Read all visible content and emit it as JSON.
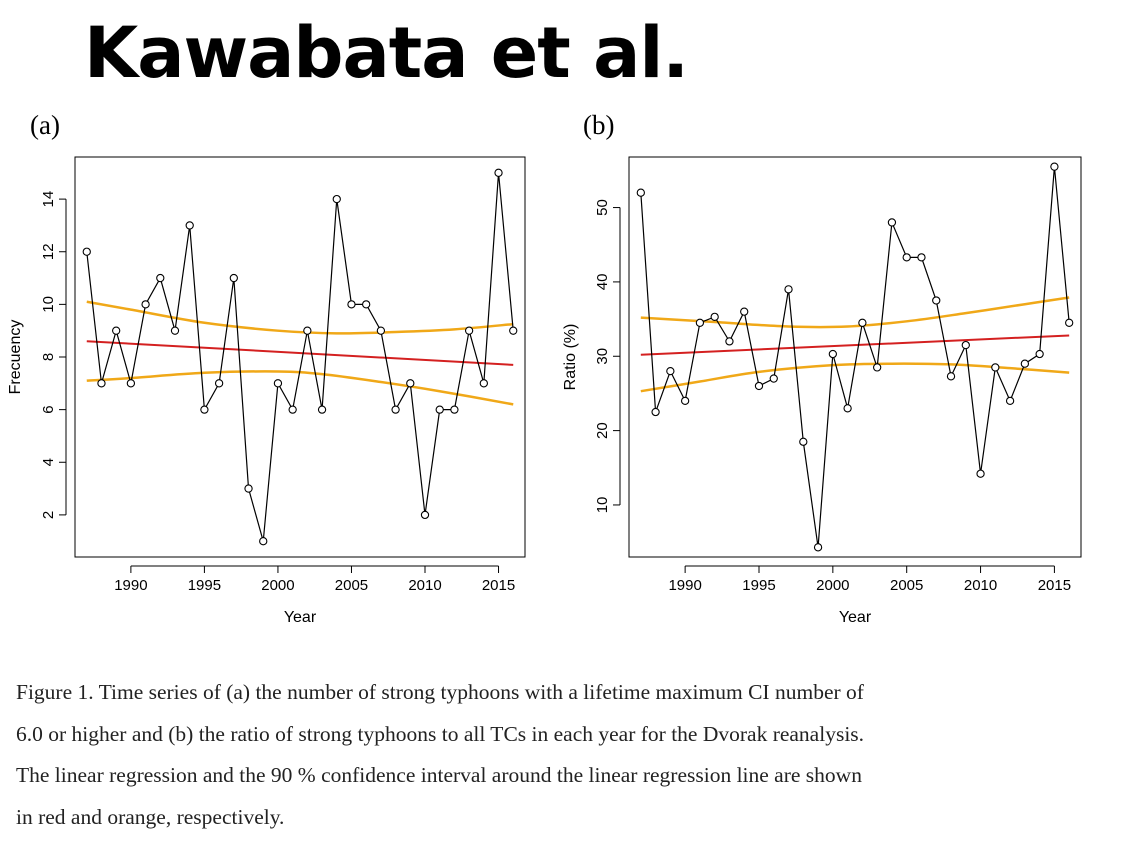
{
  "title": "Kawabata et al.",
  "panel_labels": [
    "(a)",
    "(b)"
  ],
  "caption_lines": [
    "Figure 1. Time series of (a) the number of strong typhoons with a lifetime maximum CI number of",
    "6.0 or higher and (b) the ratio of strong typhoons to all TCs in each year for the Dvorak reanalysis.",
    "The linear regression and the 90 % confidence interval around the linear regression line are shown",
    "in red and orange, respectively."
  ],
  "colors": {
    "series": "#000000",
    "regression": "#d42020",
    "confidence": "#f0a818"
  },
  "chart_data": [
    {
      "type": "line",
      "xlabel": "Year",
      "ylabel": "Frecuency",
      "xlim": [
        1986.2,
        2016.8
      ],
      "ylim": [
        0.4,
        15.6
      ],
      "xticks": [
        1990,
        1995,
        2000,
        2005,
        2010,
        2015
      ],
      "yticks": [
        2,
        4,
        6,
        8,
        10,
        12,
        14
      ],
      "x": [
        1987,
        1988,
        1989,
        1990,
        1991,
        1992,
        1993,
        1994,
        1995,
        1996,
        1997,
        1998,
        1999,
        2000,
        2001,
        2002,
        2003,
        2004,
        2005,
        2006,
        2007,
        2008,
        2009,
        2010,
        2011,
        2012,
        2013,
        2014,
        2015,
        2016
      ],
      "y": [
        12,
        7,
        9,
        7,
        10,
        11,
        9,
        13,
        6,
        7,
        11,
        3,
        1,
        7,
        6,
        9,
        6,
        14,
        10,
        10,
        9,
        6,
        7,
        2,
        6,
        6,
        9,
        7,
        15,
        9
      ],
      "regression": {
        "x": [
          1987,
          2016
        ],
        "y": [
          8.6,
          7.7
        ]
      },
      "ci_upper": {
        "x": [
          1987,
          1990,
          1995,
          2000,
          2004,
          2008,
          2012,
          2016
        ],
        "y": [
          10.1,
          9.8,
          9.3,
          9.0,
          8.9,
          8.95,
          9.05,
          9.25
        ]
      },
      "ci_lower": {
        "x": [
          1987,
          1990,
          1995,
          2000,
          2003,
          2007,
          2011,
          2016
        ],
        "y": [
          7.1,
          7.2,
          7.4,
          7.45,
          7.35,
          7.05,
          6.7,
          6.2
        ]
      }
    },
    {
      "type": "line",
      "xlabel": "Year",
      "ylabel": "Ratio (%)",
      "xlim": [
        1986.2,
        2016.8
      ],
      "ylim": [
        3,
        56.8
      ],
      "xticks": [
        1990,
        1995,
        2000,
        2005,
        2010,
        2015
      ],
      "yticks": [
        10,
        20,
        30,
        40,
        50
      ],
      "x": [
        1987,
        1988,
        1989,
        1990,
        1991,
        1992,
        1993,
        1994,
        1995,
        1996,
        1997,
        1998,
        1999,
        2000,
        2001,
        2002,
        2003,
        2004,
        2005,
        2006,
        2007,
        2008,
        2009,
        2010,
        2011,
        2012,
        2013,
        2014,
        2015,
        2016
      ],
      "y": [
        52,
        22.5,
        28,
        24,
        34.5,
        35.3,
        32,
        36,
        26,
        27,
        39,
        18.5,
        4.3,
        30.3,
        23,
        34.5,
        28.5,
        48,
        43.3,
        43.3,
        37.5,
        27.3,
        31.5,
        14.2,
        28.5,
        24,
        29,
        30.3,
        55.5,
        34.5
      ],
      "regression": {
        "x": [
          1987,
          2016
        ],
        "y": [
          30.2,
          32.8
        ]
      },
      "ci_upper": {
        "x": [
          1987,
          1992,
          1997,
          2001,
          2005,
          2009,
          2013,
          2016
        ],
        "y": [
          35.2,
          34.6,
          34.0,
          34.0,
          34.7,
          35.8,
          37.0,
          37.9
        ]
      },
      "ci_lower": {
        "x": [
          1987,
          1991,
          1995,
          2000,
          2004,
          2008,
          2012,
          2016
        ],
        "y": [
          25.3,
          26.6,
          27.9,
          28.8,
          29.0,
          28.9,
          28.4,
          27.8
        ]
      }
    }
  ]
}
